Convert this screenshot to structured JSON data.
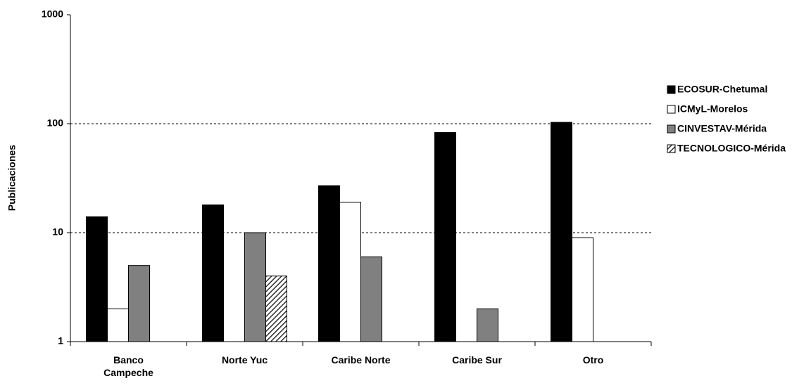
{
  "chart_data": {
    "type": "bar",
    "log_scale": true,
    "grid": true,
    "legend": "right",
    "ylabel": "Publicaciones",
    "categories": [
      "Banco Campeche",
      "Norte Yuc",
      "Caribe Norte",
      "Caribe Sur",
      "Otro"
    ],
    "series": [
      {
        "name": "ECOSUR-Chetumal",
        "color": "#000000",
        "values": [
          14,
          18,
          27,
          83,
          103
        ]
      },
      {
        "name": "ICMyL-Morelos",
        "color": "#ffffff",
        "values": [
          2,
          null,
          19,
          null,
          9
        ]
      },
      {
        "name": "CINVESTAV-Mérida",
        "color": "#808080",
        "values": [
          5,
          10,
          6,
          2,
          null
        ]
      },
      {
        "name": "TECNOLOGICO-Mérida",
        "color": "#ffffff",
        "pattern": "hatch",
        "values": [
          null,
          4,
          null,
          null,
          null
        ]
      }
    ],
    "ylim": [
      1,
      1000
    ],
    "yticks": [
      1,
      10,
      100,
      1000
    ]
  }
}
